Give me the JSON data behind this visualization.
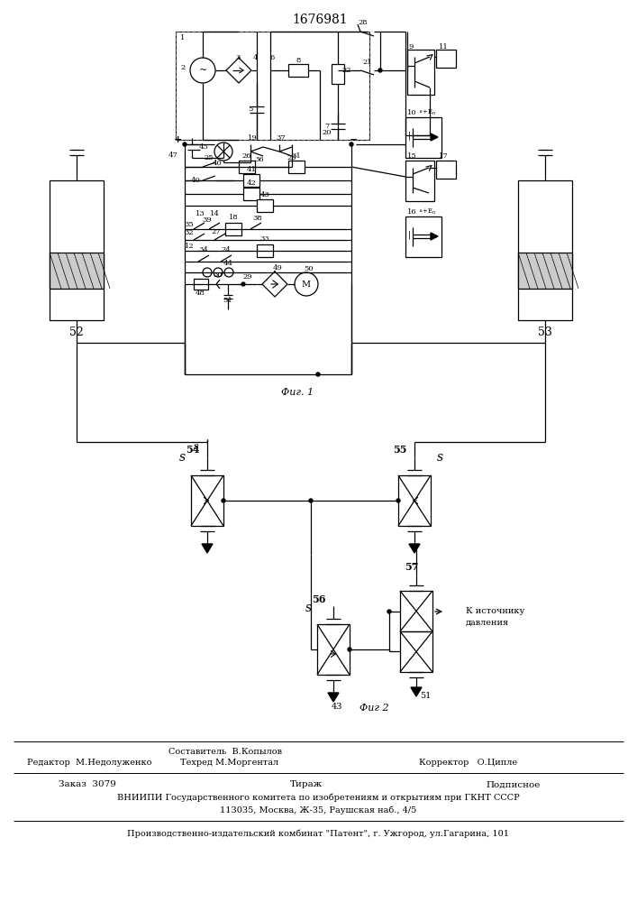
{
  "title": "1676981",
  "fig1_label": "Фиг. 1",
  "fig2_label": "Фиг 2",
  "footer_comp": "Составитель  В.Копылов",
  "footer_ed": "Редактор  М.Недолуженко",
  "footer_tech": "Техред М.Моргентал",
  "footer_corr": "Корректор   О.Ципле",
  "footer_order": "Заказ  3079",
  "footer_tirazh": "Тираж",
  "footer_podp": "Подписное",
  "footer_vniip": "ВНИИПИ Государственного комитета по изобретениям и открытиям при ГКНТ СССР",
  "footer_addr": "113035, Москва, Ж-35, Раушская наб., 4/5",
  "footer_patent": "Производственно-издательский комбинат \"Патент\", г. Ужгород, ул.Гагарина, 101",
  "bg_color": "#ffffff",
  "lc": "#000000"
}
